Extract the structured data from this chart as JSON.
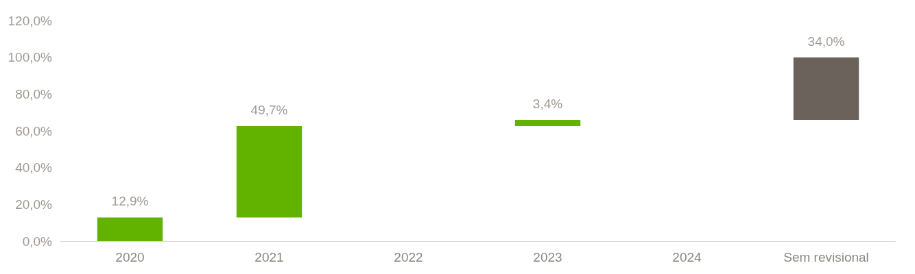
{
  "chart_data": {
    "type": "bar",
    "categories": [
      "2020",
      "2021",
      "2022",
      "2023",
      "2024",
      "Sem revisional"
    ],
    "values": [
      12.9,
      49.7,
      null,
      3.4,
      null,
      34.0
    ],
    "base": [
      0,
      12.9,
      null,
      62.6,
      null,
      66.0
    ],
    "colors": [
      "#62b300",
      "#62b300",
      "#62b300",
      "#62b300",
      "#62b300",
      "#6b635b"
    ],
    "value_labels": [
      "12,9%",
      "49,7%",
      null,
      "3,4%",
      null,
      "34,0%"
    ],
    "ylim": [
      0,
      120
    ],
    "yticks": [
      {
        "value": 0,
        "label": "0,0%"
      },
      {
        "value": 20,
        "label": "20,0%"
      },
      {
        "value": 40,
        "label": "40,0%"
      },
      {
        "value": 60,
        "label": "60,0%"
      },
      {
        "value": 80,
        "label": "80,0%"
      },
      {
        "value": 100,
        "label": "100,0%"
      },
      {
        "value": 120,
        "label": "120,0%"
      }
    ],
    "grid": false
  }
}
